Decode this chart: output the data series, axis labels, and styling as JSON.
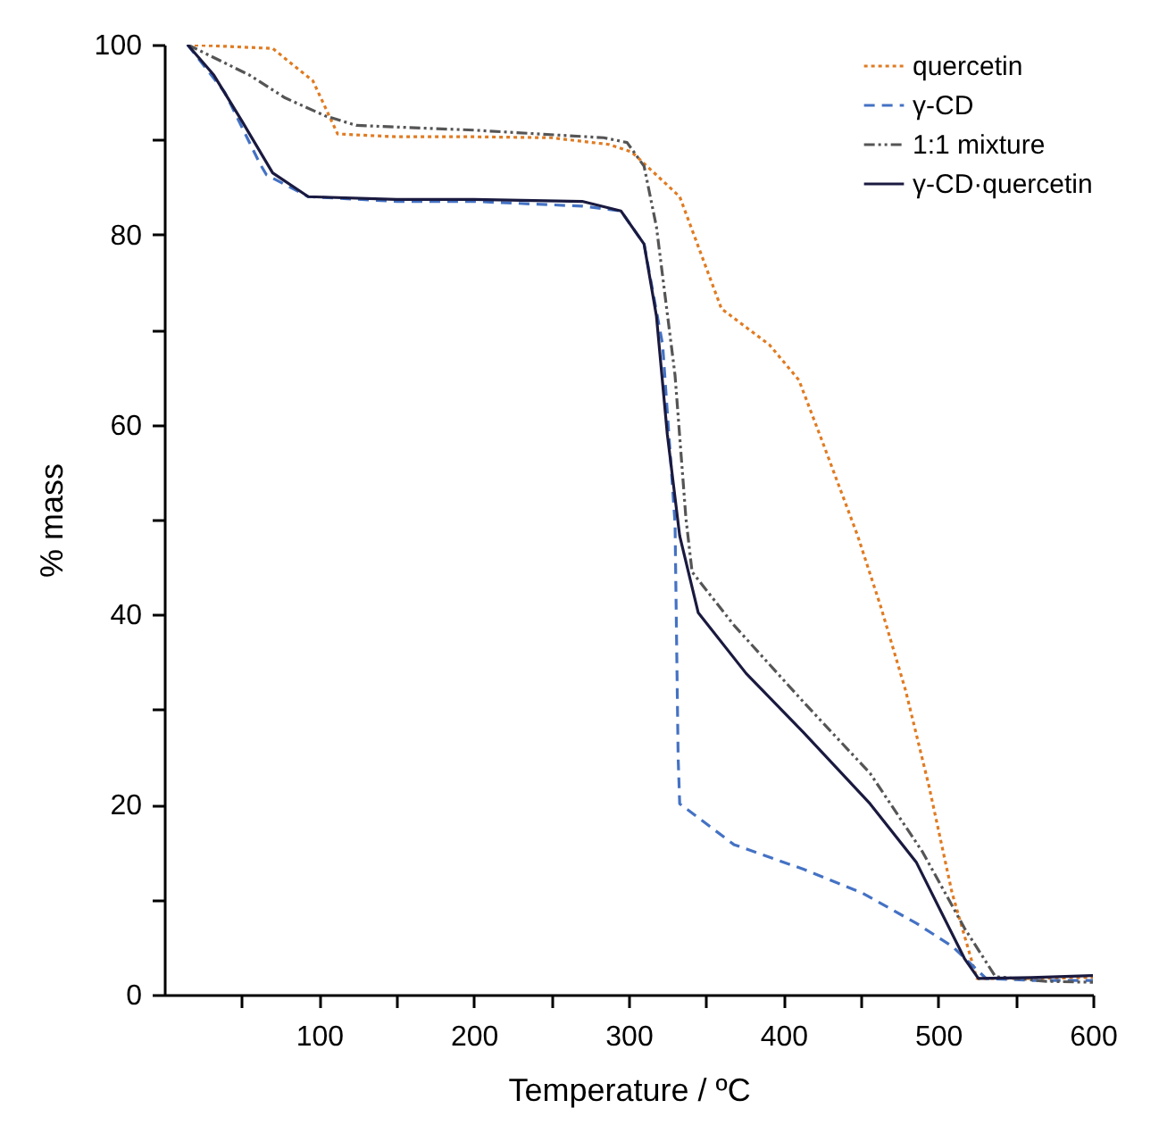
{
  "chart_data": {
    "type": "line",
    "xlabel": "Temperature / ºC",
    "ylabel": "% mass",
    "xlim": [
      0,
      600
    ],
    "ylim": [
      0,
      100
    ],
    "xticks": [
      {
        "value": 50,
        "label": null
      },
      100,
      {
        "value": 150,
        "label": null
      },
      200,
      {
        "value": 250,
        "label": null
      },
      300,
      {
        "value": 350,
        "label": null
      },
      400,
      {
        "value": 450,
        "label": null
      },
      500,
      {
        "value": 550,
        "label": null
      },
      600
    ],
    "yticks": [
      0,
      {
        "value": 10,
        "label": null
      },
      20,
      {
        "value": 30,
        "label": null
      },
      40,
      {
        "value": 50,
        "label": null
      },
      60,
      {
        "value": 70,
        "label": null
      },
      80,
      {
        "value": 90,
        "label": null
      },
      100
    ],
    "grid": false,
    "legend": "top right",
    "series": [
      {
        "name": "quercetin",
        "color": "#e07b22",
        "line_style": "dotted",
        "x": [
          15,
          70,
          96,
          112,
          150,
          200,
          250,
          287,
          302,
          333,
          360,
          391,
          410,
          425,
          448,
          463,
          479,
          494,
          509,
          525,
          560,
          600
        ],
        "values": [
          100,
          99.6,
          96.2,
          90.6,
          90.3,
          90.3,
          90.2,
          89.5,
          88.7,
          84,
          72.2,
          68.4,
          64.7,
          58.3,
          48.3,
          40.8,
          32,
          22,
          10.7,
          1.7,
          1.7,
          1.8
        ]
      },
      {
        "name": "γ-CD",
        "color": "#4472c4",
        "line_style": "dashed",
        "x": [
          15,
          39,
          62,
          66,
          93,
          150,
          200,
          270,
          295,
          310,
          322,
          330,
          332,
          333,
          368,
          413,
          451,
          486,
          509,
          531,
          560,
          600
        ],
        "values": [
          100,
          95,
          87.4,
          86.3,
          84,
          83.5,
          83.5,
          83,
          82.5,
          79,
          68.4,
          49.6,
          25,
          20.1,
          15.8,
          13.2,
          10.7,
          7.5,
          5.1,
          1.7,
          1.5,
          1.5
        ]
      },
      {
        "name": "1:1 mixture",
        "color": "#555555",
        "line_style": "dashdot",
        "x": [
          15,
          55,
          78,
          104,
          124,
          200,
          284,
          299,
          310,
          318,
          330,
          337,
          341,
          368,
          413,
          456,
          490,
          517,
          537,
          570,
          600
        ],
        "values": [
          100,
          96.8,
          94.4,
          92.5,
          91.5,
          91,
          90.2,
          89.7,
          87.2,
          80.8,
          65.2,
          50.2,
          44.5,
          38.9,
          30.8,
          23.3,
          15,
          7,
          1.9,
          1.4,
          1.3
        ]
      },
      {
        "name": "γ-CD·quercetin",
        "color": "#1a1a40",
        "line_style": "solid",
        "x": [
          15,
          32,
          50,
          70,
          93,
          150,
          200,
          270,
          295,
          310,
          318,
          325,
          333,
          345,
          376,
          413,
          456,
          486,
          517,
          526,
          560,
          600
        ],
        "values": [
          100,
          96.8,
          92,
          86.5,
          84,
          83.7,
          83.7,
          83.5,
          82.5,
          79,
          71.4,
          59,
          48.3,
          40.2,
          33.8,
          27.6,
          20.1,
          13.9,
          3.8,
          1.7,
          1.8,
          2
        ]
      }
    ]
  }
}
